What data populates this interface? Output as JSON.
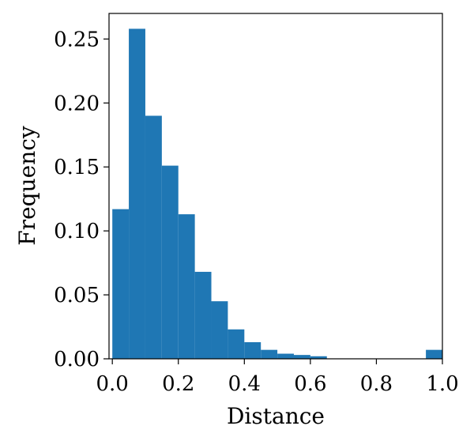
{
  "chart_data": {
    "type": "bar",
    "title": "",
    "xlabel": "Distance",
    "ylabel": "Frequency",
    "bin_edges": [
      0.0,
      0.05,
      0.1,
      0.15,
      0.2,
      0.25,
      0.3,
      0.35,
      0.4,
      0.45,
      0.5,
      0.55,
      0.6,
      0.65,
      0.7,
      0.75,
      0.8,
      0.85,
      0.9,
      0.95,
      1.0
    ],
    "values": [
      0.117,
      0.258,
      0.19,
      0.151,
      0.113,
      0.068,
      0.045,
      0.023,
      0.013,
      0.007,
      0.004,
      0.003,
      0.002,
      0.0,
      0.0,
      0.0,
      0.0,
      0.0,
      0.0,
      0.007
    ],
    "xlim": [
      -0.01,
      1.0
    ],
    "ylim": [
      0.0,
      0.27
    ],
    "xticks": [
      0.0,
      0.2,
      0.4,
      0.6,
      0.8,
      1.0
    ],
    "xtick_labels": [
      "0.0",
      "0.2",
      "0.4",
      "0.6",
      "0.8",
      "1.0"
    ],
    "yticks": [
      0.0,
      0.05,
      0.1,
      0.15,
      0.2,
      0.25
    ],
    "ytick_labels": [
      "0.00",
      "0.05",
      "0.10",
      "0.15",
      "0.20",
      "0.25"
    ],
    "bar_color": "#1f77b4",
    "grid": false,
    "legend": "none"
  }
}
